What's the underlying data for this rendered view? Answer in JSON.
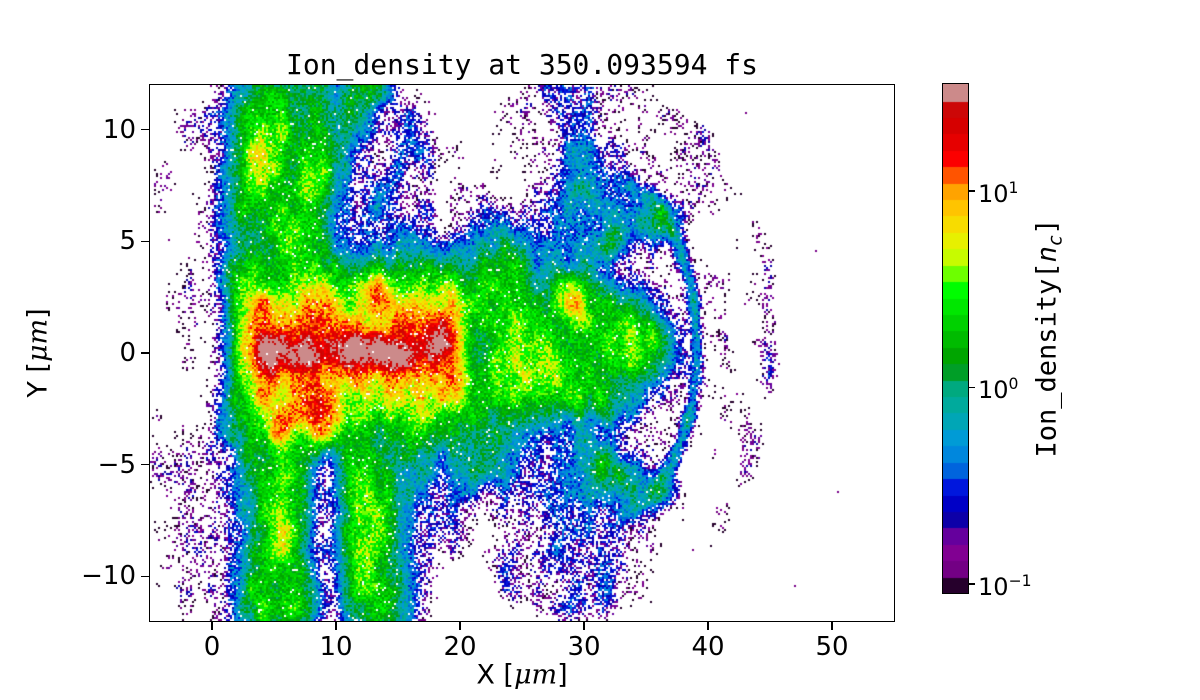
{
  "figure": {
    "background": "#ffffff"
  },
  "chart_data": {
    "type": "heatmap",
    "title": "Ion_density at 350.093594 fs",
    "xlabel": "X [μm]",
    "xlabel_parts": {
      "pre": "X [",
      "italic": "μm",
      "post": "]"
    },
    "ylabel": "Y [μm]",
    "ylabel_parts": {
      "pre": "Y [",
      "italic": "μm",
      "post": "]"
    },
    "xlim": [
      -5,
      55
    ],
    "ylim": [
      -12,
      12
    ],
    "xticks": [
      0,
      10,
      20,
      30,
      40,
      50
    ],
    "yticks": [
      10,
      5,
      0,
      -5,
      -10
    ],
    "grid": false,
    "scale": "log10",
    "vmin": 0.09,
    "vmax": 35,
    "legend": "none",
    "colorbar": {
      "label": "Ion_density[n_c]",
      "label_parts": {
        "pre": "Ion_density[",
        "var": "n",
        "sub": "c",
        "post": "]"
      },
      "tick_exponents": [
        1,
        0,
        -1
      ],
      "levels": 31,
      "colormap": "nipy_spectral",
      "stops": [
        [
          0.0,
          0,
          0,
          0
        ],
        [
          0.05,
          119,
          0,
          136
        ],
        [
          0.1,
          136,
          0,
          153
        ],
        [
          0.15,
          0,
          0,
          170
        ],
        [
          0.2,
          0,
          0,
          221
        ],
        [
          0.25,
          0,
          119,
          221
        ],
        [
          0.3,
          0,
          153,
          221
        ],
        [
          0.35,
          0,
          170,
          170
        ],
        [
          0.4,
          0,
          170,
          136
        ],
        [
          0.45,
          0,
          153,
          0
        ],
        [
          0.5,
          0,
          187,
          0
        ],
        [
          0.55,
          0,
          221,
          0
        ],
        [
          0.6,
          0,
          255,
          0
        ],
        [
          0.65,
          187,
          255,
          0
        ],
        [
          0.7,
          238,
          238,
          0
        ],
        [
          0.75,
          255,
          204,
          0
        ],
        [
          0.8,
          255,
          153,
          0
        ],
        [
          0.85,
          255,
          0,
          0
        ],
        [
          0.9,
          221,
          0,
          0
        ],
        [
          0.95,
          204,
          0,
          0
        ],
        [
          1.0,
          204,
          204,
          204
        ]
      ]
    },
    "features": [
      {
        "type": "qridge",
        "x0": 2.2,
        "x1": 21.3,
        "y": 0.0,
        "sy": 3.9,
        "L": 0.14
      },
      {
        "type": "qridge",
        "x0": 2.9,
        "x1": 20.2,
        "y": 0.0,
        "sy": 2.9,
        "L": 0.42
      },
      {
        "type": "qridge",
        "x0": 1.8,
        "x1": 21.8,
        "y": 0.0,
        "sy": 4.35,
        "L": -0.55
      },
      {
        "type": "ridge",
        "x0": 3.4,
        "x1": 19.2,
        "y": 0.0,
        "sy": 1.3,
        "L": 0.9
      },
      {
        "type": "ridge",
        "x0": 4.3,
        "x1": 17.5,
        "y": 0.05,
        "sy": 0.55,
        "L": 1.36
      },
      {
        "type": "blob",
        "cx": 5.4,
        "cy": 0.1,
        "sx": 0.8,
        "sy": 0.4,
        "L": 1.5
      },
      {
        "type": "blob",
        "cx": 7.6,
        "cy": -0.05,
        "sx": 0.55,
        "sy": 0.33,
        "L": 1.52
      },
      {
        "type": "blob",
        "cx": 11.9,
        "cy": 0.15,
        "sx": 1.3,
        "sy": 0.33,
        "L": 1.58
      },
      {
        "type": "blob",
        "cx": 14.3,
        "cy": -0.05,
        "sx": 0.8,
        "sy": 0.3,
        "L": 1.5
      },
      {
        "type": "blob",
        "cx": 17.8,
        "cy": 0.4,
        "sx": 0.7,
        "sy": 0.4,
        "L": 1.3
      },
      {
        "type": "blob",
        "cx": 13.3,
        "cy": 2.4,
        "sx": 0.7,
        "sy": 0.55,
        "L": 1.05
      },
      {
        "type": "blob",
        "cx": 8.7,
        "cy": -2.5,
        "sx": 1.0,
        "sy": 0.8,
        "L": 1.0
      },
      {
        "type": "blob",
        "cx": 5.6,
        "cy": -3.1,
        "sx": 0.6,
        "sy": 0.55,
        "L": 0.95
      },
      {
        "type": "blob",
        "cx": 19.0,
        "cy": 0.2,
        "sx": 1.0,
        "sy": 1.5,
        "L": 0.72
      },
      {
        "type": "wedge",
        "x0": 20.5,
        "x1": 35.6,
        "y": 0.2,
        "sy0": 5.0,
        "sy1": 1.1,
        "L": 0.1
      },
      {
        "type": "wedge",
        "x0": 20.0,
        "x1": 34.0,
        "y": 0.0,
        "sy0": 6.3,
        "sy1": 2.5,
        "L": -0.45
      },
      {
        "type": "blob",
        "cx": 22.5,
        "cy": 1.8,
        "sx": 2.2,
        "sy": 1.0,
        "L": 0.42
      },
      {
        "type": "blob",
        "cx": 25.5,
        "cy": -0.8,
        "sx": 2.5,
        "sy": 0.9,
        "L": 0.38
      },
      {
        "type": "blob",
        "cx": 29.5,
        "cy": 2.3,
        "sx": 1.8,
        "sy": 0.7,
        "L": 0.35
      },
      {
        "type": "blob",
        "cx": 30.5,
        "cy": -2.0,
        "sx": 1.6,
        "sy": 0.7,
        "L": 0.3
      },
      {
        "type": "blob",
        "cx": 33.8,
        "cy": 0.3,
        "sx": 1.6,
        "sy": 1.0,
        "L": 0.22
      },
      {
        "type": "seg",
        "x0": 30.0,
        "y0": 4.2,
        "x1": 35.6,
        "y1": 6.2,
        "w": 0.55,
        "L": -0.2
      },
      {
        "type": "seg",
        "x0": 30.0,
        "y0": -4.4,
        "x1": 35.8,
        "y1": -6.3,
        "w": 0.6,
        "L": -0.3
      },
      {
        "type": "arc",
        "cx": 31.5,
        "cy": 0.2,
        "r": 7.6,
        "w": 0.3,
        "xmin": 33.4,
        "L": -0.3
      },
      {
        "type": "blob",
        "cx": 36.2,
        "cy": 5.9,
        "sx": 0.8,
        "sy": 0.6,
        "L": -0.05
      },
      {
        "type": "blob",
        "cx": 36.6,
        "cy": -6.1,
        "sx": 0.7,
        "sy": 0.5,
        "L": -0.25
      },
      {
        "type": "vcol",
        "x0": 2.3,
        "x1": 8.8,
        "ytop": 12.3,
        "ybot": 3.2,
        "L": 0.0
      },
      {
        "type": "vcol",
        "x0": 1.2,
        "x1": 10.8,
        "ytop": 12.3,
        "ybot": 3.0,
        "L": -0.55
      },
      {
        "type": "vcol",
        "x0": -0.5,
        "x1": 18.5,
        "ytop": 12.3,
        "ybot": 2.8,
        "L": -1.02
      },
      {
        "type": "blob",
        "cx": 4.8,
        "cy": 9.0,
        "sx": 1.5,
        "sy": 1.4,
        "L": 0.5
      },
      {
        "type": "blob",
        "cx": 6.3,
        "cy": 5.3,
        "sx": 0.9,
        "sy": 0.9,
        "L": 0.32
      },
      {
        "type": "seg",
        "x0": 7.6,
        "y0": 6.8,
        "x1": 12.8,
        "y1": 12.3,
        "w": 1.0,
        "L": -0.05
      },
      {
        "type": "seg",
        "x0": 10.0,
        "y0": 4.0,
        "x1": 16.0,
        "y1": 9.0,
        "w": 1.0,
        "L": -0.75
      },
      {
        "type": "vcol",
        "x0": 2.6,
        "x1": 8.4,
        "ytop": -3.4,
        "ybot": -12.3,
        "L": -0.02
      },
      {
        "type": "vcol",
        "x0": 10.6,
        "x1": 15.4,
        "ytop": -4.0,
        "ybot": -12.3,
        "L": -0.1
      },
      {
        "type": "vcol",
        "x0": 1.2,
        "x1": 17.0,
        "ytop": -3.2,
        "ybot": -12.3,
        "L": -0.8
      },
      {
        "type": "vcol",
        "x0": -0.5,
        "x1": 19.5,
        "ytop": -3.0,
        "ybot": -12.3,
        "L": -1.05
      },
      {
        "type": "blob",
        "cx": 5.3,
        "cy": -8.3,
        "sx": 1.0,
        "sy": 1.9,
        "L": 0.42
      },
      {
        "type": "blob",
        "cx": 6.9,
        "cy": -10.8,
        "sx": 0.8,
        "sy": 1.1,
        "L": 0.3
      },
      {
        "type": "blob",
        "cx": 12.6,
        "cy": -7.6,
        "sx": 0.9,
        "sy": 1.7,
        "L": 0.33
      },
      {
        "type": "blob",
        "cx": 13.4,
        "cy": -10.9,
        "sx": 0.7,
        "sy": 1.1,
        "L": 0.28
      },
      {
        "type": "vcol",
        "x0": -5.3,
        "x1": 2.5,
        "ytop": 12.3,
        "ybot": -12.3,
        "L": -1.08
      },
      {
        "type": "halo",
        "cx": 30.0,
        "cy": 0.4,
        "rx": 15.8,
        "ry": 12.3,
        "L": -0.95
      },
      {
        "type": "blob",
        "cx": 29.8,
        "cy": 6.2,
        "sx": 2.6,
        "sy": 2.0,
        "L": -0.68
      },
      {
        "type": "blob",
        "cx": 30.2,
        "cy": -6.6,
        "sx": 2.4,
        "sy": 2.4,
        "L": -0.66
      },
      {
        "type": "blob",
        "cx": 31.0,
        "cy": 9.5,
        "sx": 3.0,
        "sy": 2.0,
        "L": -0.8
      },
      {
        "type": "blob",
        "cx": 29.0,
        "cy": -9.5,
        "sx": 2.5,
        "sy": 2.0,
        "L": -0.85
      }
    ],
    "isolated_points": [
      {
        "x": 48.6,
        "y": 4.6
      },
      {
        "x": 50.4,
        "y": -6.2
      },
      {
        "x": 46.9,
        "y": -10.4
      },
      {
        "x": 43.0,
        "y": 10.8
      }
    ]
  }
}
